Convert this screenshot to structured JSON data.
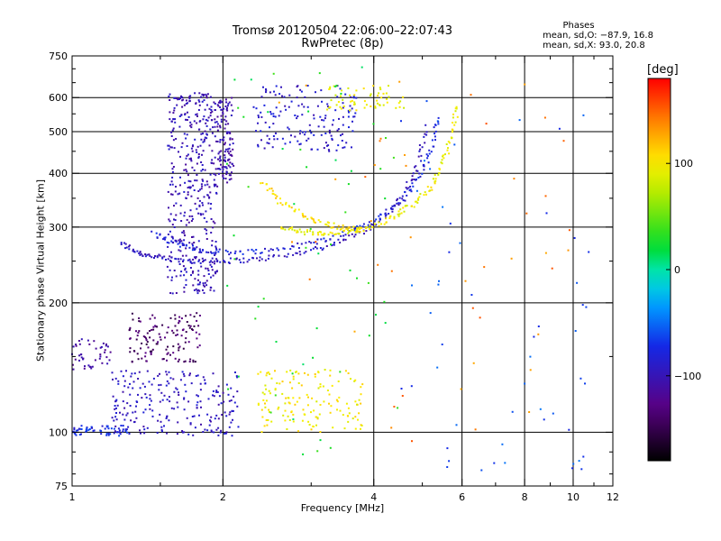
{
  "chart_data": {
    "type": "scatter",
    "title": "Tromsø 20120504 22:06:00–22:07:43",
    "subtitle": "RwPretec (8p)",
    "xlabel": "Frequency [MHz]",
    "ylabel": "Stationary phase Virtual Height [km]",
    "x_scale": "log",
    "y_scale": "log",
    "xlim": [
      1,
      12
    ],
    "ylim": [
      75,
      750
    ],
    "x_ticks": [
      "1",
      "2",
      "4",
      "6",
      "8",
      "10",
      "12"
    ],
    "y_ticks": [
      "75",
      "100",
      "200",
      "300",
      "400",
      "500",
      "600",
      "750"
    ],
    "x_major_grid": [
      2,
      4,
      6,
      8,
      10
    ],
    "y_major_grid": [
      100,
      200,
      300,
      400,
      500,
      600
    ],
    "grid": true,
    "phases_box": {
      "title": "Phases",
      "line1": "mean, sd,O: −87.9, 16.8",
      "line2": "mean, sd,X: 93.0, 20.8"
    },
    "colorbar": {
      "label": "[deg]",
      "range": [
        -180,
        180
      ],
      "ticks": [
        "100",
        "0",
        "−100"
      ],
      "tick_values": [
        100,
        0,
        -100
      ]
    },
    "series": [
      {
        "kind": "curve",
        "phase": -95,
        "x": [
          1.25,
          1.35,
          1.45,
          1.6,
          1.8,
          2.0,
          2.3,
          2.7,
          3.2,
          3.7,
          4.2,
          4.6,
          4.9,
          5.1
        ],
        "y": [
          275,
          262,
          256,
          252,
          250,
          250,
          252,
          258,
          270,
          288,
          315,
          355,
          420,
          520
        ]
      },
      {
        "kind": "curve",
        "phase": -80,
        "x": [
          1.45,
          1.6,
          1.8,
          2.1,
          2.5,
          3.0,
          3.5,
          4.0,
          4.5,
          4.9,
          5.2,
          5.4
        ],
        "y": [
          290,
          275,
          265,
          262,
          265,
          275,
          290,
          310,
          340,
          390,
          450,
          540
        ]
      },
      {
        "kind": "curve",
        "phase": 95,
        "x": [
          2.6,
          2.9,
          3.2,
          3.6,
          4.0,
          4.4,
          4.8,
          5.2,
          5.5,
          5.7,
          5.9
        ],
        "y": [
          300,
          292,
          288,
          292,
          302,
          318,
          340,
          370,
          420,
          490,
          580
        ]
      },
      {
        "kind": "curve",
        "phase": 105,
        "x": [
          2.4,
          2.6,
          2.9,
          3.2,
          3.5,
          3.8
        ],
        "y": [
          380,
          345,
          320,
          305,
          298,
          295
        ]
      },
      {
        "kind": "cluster",
        "phase": -100,
        "x": [
          1.55,
          1.95
        ],
        "y": [
          210,
          620
        ],
        "n": 420
      },
      {
        "kind": "cluster",
        "phase": -105,
        "x": [
          1.95,
          2.1
        ],
        "y": [
          380,
          600
        ],
        "n": 120
      },
      {
        "kind": "cluster",
        "phase": -90,
        "x": [
          2.3,
          3.7
        ],
        "y": [
          450,
          640
        ],
        "n": 160
      },
      {
        "kind": "cluster",
        "phase": 95,
        "x": [
          3.2,
          4.6
        ],
        "y": [
          560,
          640
        ],
        "n": 60
      },
      {
        "kind": "cluster",
        "phase": -140,
        "x": [
          1.3,
          1.8
        ],
        "y": [
          145,
          190
        ],
        "n": 130
      },
      {
        "kind": "cluster",
        "phase": -110,
        "x": [
          1.0,
          1.2
        ],
        "y": [
          140,
          165
        ],
        "n": 45
      },
      {
        "kind": "cluster",
        "phase": -95,
        "x": [
          1.2,
          2.15
        ],
        "y": [
          98,
          140
        ],
        "n": 230
      },
      {
        "kind": "cluster",
        "phase": -75,
        "x": [
          1.0,
          1.3
        ],
        "y": [
          98,
          104
        ],
        "n": 60
      },
      {
        "kind": "cluster",
        "phase": 100,
        "x": [
          2.35,
          3.8
        ],
        "y": [
          100,
          140
        ],
        "n": 150
      },
      {
        "kind": "cluster",
        "phase": 25,
        "x": [
          2.0,
          4.5
        ],
        "y": [
          85,
          720
        ],
        "n": 60
      },
      {
        "kind": "cluster",
        "phase": -60,
        "x": [
          4.5,
          11
        ],
        "y": [
          80,
          600
        ],
        "n": 55
      },
      {
        "kind": "cluster",
        "phase": 140,
        "x": [
          2.5,
          10
        ],
        "y": [
          90,
          700
        ],
        "n": 45
      }
    ]
  }
}
